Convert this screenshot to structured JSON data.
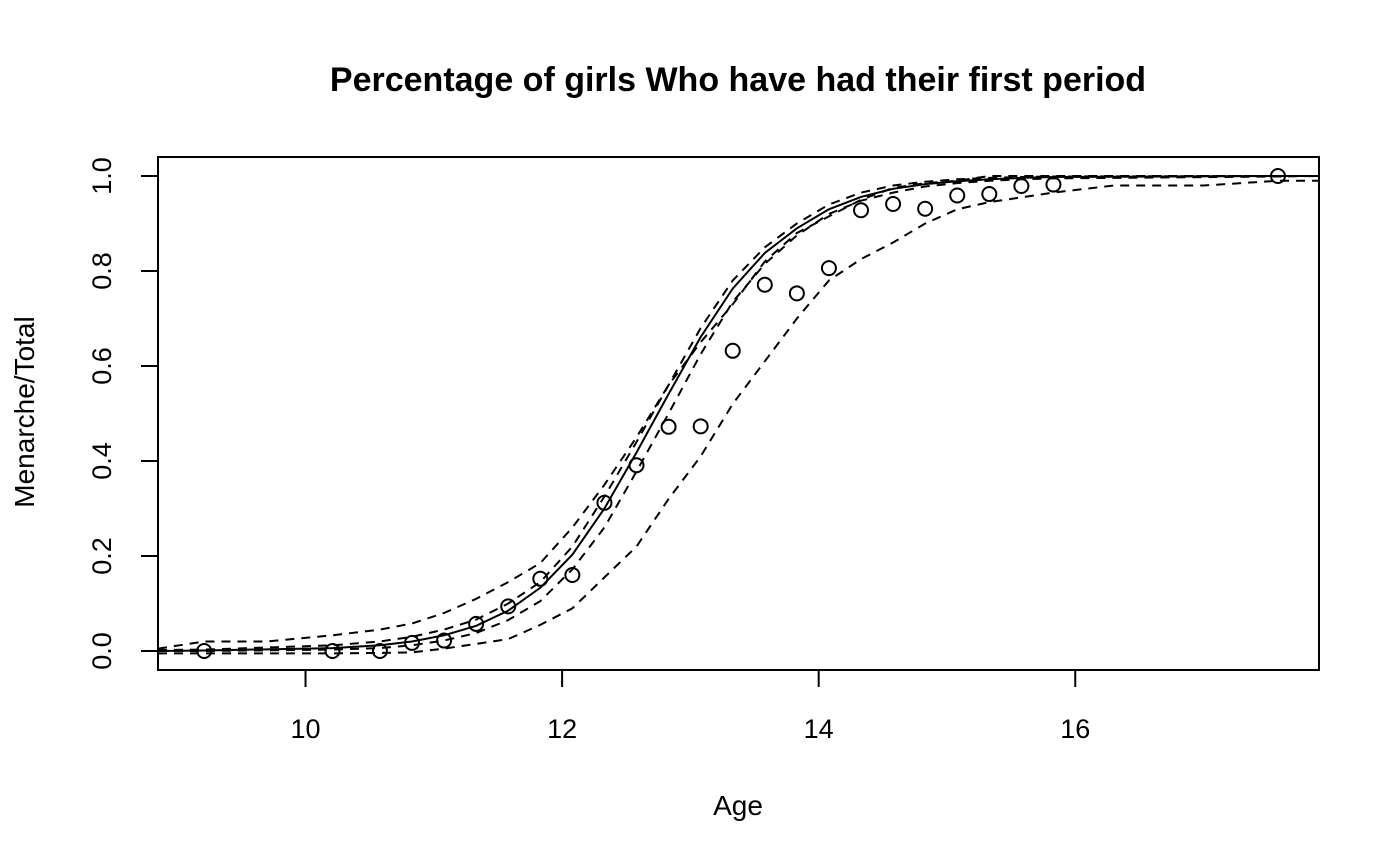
{
  "chart_data": {
    "type": "scatter",
    "title": "Percentage of girls Who have had their first period",
    "xlabel": "Age",
    "ylabel": "Menarche/Total",
    "xlim": [
      8.85,
      17.9
    ],
    "ylim": [
      -0.04,
      1.04
    ],
    "x_ticks": [
      10,
      12,
      14,
      16
    ],
    "x_tick_labels": [
      "10",
      "12",
      "14",
      "16"
    ],
    "y_ticks": [
      0.0,
      0.2,
      0.4,
      0.6,
      0.8,
      1.0
    ],
    "y_tick_labels": [
      "0.0",
      "0.2",
      "0.4",
      "0.6",
      "0.8",
      "1.0"
    ],
    "grid": false,
    "points": {
      "x": [
        9.21,
        10.21,
        10.58,
        10.83,
        11.08,
        11.33,
        11.58,
        11.83,
        12.08,
        12.33,
        12.58,
        12.83,
        13.08,
        13.33,
        13.58,
        13.83,
        14.08,
        14.33,
        14.58,
        14.83,
        15.08,
        15.33,
        15.58,
        15.83,
        17.58
      ],
      "y": [
        0.0,
        0.0,
        0.0,
        0.017,
        0.022,
        0.057,
        0.094,
        0.152,
        0.16,
        0.312,
        0.391,
        0.472,
        0.473,
        0.632,
        0.771,
        0.753,
        0.806,
        0.928,
        0.941,
        0.931,
        0.959,
        0.962,
        0.979,
        0.982,
        1.0
      ]
    },
    "fit": {
      "x": [
        8.85,
        9.21,
        10.21,
        10.58,
        10.83,
        11.08,
        11.33,
        11.58,
        11.83,
        12.08,
        12.33,
        12.58,
        12.83,
        13.08,
        13.33,
        13.58,
        13.83,
        14.08,
        14.33,
        14.58,
        14.83,
        15.08,
        15.33,
        15.58,
        15.83,
        17.58,
        17.9
      ],
      "y": [
        0.0,
        0.001,
        0.006,
        0.012,
        0.02,
        0.033,
        0.053,
        0.085,
        0.133,
        0.203,
        0.3,
        0.418,
        0.541,
        0.661,
        0.763,
        0.838,
        0.89,
        0.93,
        0.956,
        0.973,
        0.983,
        0.989,
        0.993,
        0.996,
        0.998,
        1.0,
        1.0
      ]
    },
    "bands": [
      {
        "x": [
          8.85,
          9.21,
          9.7,
          10.21,
          10.58,
          10.83,
          11.08,
          11.33,
          11.58,
          11.83,
          12.08,
          12.33,
          12.58,
          12.83,
          13.08,
          13.33,
          13.58,
          13.83,
          14.08,
          14.33,
          14.58,
          14.83,
          15.08,
          15.33,
          15.58,
          15.83,
          16.5,
          17.58,
          17.9
        ],
        "y": [
          0.005,
          0.02,
          0.02,
          0.033,
          0.045,
          0.058,
          0.08,
          0.11,
          0.145,
          0.185,
          0.26,
          0.35,
          0.45,
          0.56,
          0.65,
          0.73,
          0.82,
          0.88,
          0.915,
          0.95,
          0.975,
          0.985,
          0.99,
          1.0,
          1.0,
          1.0,
          1.0,
          1.0,
          1.0
        ]
      },
      {
        "x": [
          8.85,
          9.21,
          10.21,
          10.58,
          10.83,
          11.08,
          11.33,
          11.58,
          11.83,
          12.08,
          12.33,
          12.58,
          12.83,
          13.08,
          13.33,
          13.58,
          13.83,
          14.08,
          14.33,
          14.58,
          14.83,
          15.08,
          15.33,
          15.58,
          15.83,
          17.58,
          17.9
        ],
        "y": [
          0.002,
          0.003,
          0.012,
          0.02,
          0.03,
          0.045,
          0.066,
          0.1,
          0.145,
          0.22,
          0.325,
          0.44,
          0.56,
          0.68,
          0.78,
          0.85,
          0.9,
          0.94,
          0.965,
          0.98,
          0.988,
          0.993,
          0.996,
          0.998,
          0.999,
          1.0,
          1.0
        ]
      },
      {
        "x": [
          8.85,
          9.21,
          10.21,
          10.58,
          10.83,
          11.08,
          11.33,
          11.58,
          11.83,
          12.08,
          12.33,
          12.58,
          12.83,
          13.08,
          13.33,
          13.58,
          13.83,
          14.08,
          14.33,
          14.58,
          14.83,
          15.08,
          15.33,
          15.58,
          15.83,
          17.58,
          17.9
        ],
        "y": [
          0.0,
          0.0,
          0.003,
          0.006,
          0.012,
          0.022,
          0.038,
          0.065,
          0.105,
          0.172,
          0.26,
          0.378,
          0.5,
          0.625,
          0.735,
          0.815,
          0.875,
          0.92,
          0.948,
          0.965,
          0.978,
          0.985,
          0.99,
          0.993,
          0.995,
          0.999,
          1.0
        ]
      },
      {
        "x": [
          8.85,
          9.21,
          10.21,
          10.58,
          10.83,
          11.08,
          11.33,
          11.58,
          11.83,
          12.08,
          12.33,
          12.58,
          12.83,
          13.08,
          13.33,
          13.58,
          13.83,
          14.08,
          14.33,
          14.58,
          14.83,
          15.08,
          15.33,
          15.58,
          15.83,
          16.3,
          17.0,
          17.58,
          17.9
        ],
        "y": [
          -0.005,
          -0.005,
          -0.005,
          -0.004,
          -0.003,
          0.005,
          0.015,
          0.025,
          0.055,
          0.09,
          0.155,
          0.22,
          0.32,
          0.41,
          0.52,
          0.61,
          0.7,
          0.78,
          0.825,
          0.86,
          0.9,
          0.93,
          0.945,
          0.955,
          0.965,
          0.98,
          0.98,
          0.99,
          0.99
        ]
      }
    ]
  }
}
